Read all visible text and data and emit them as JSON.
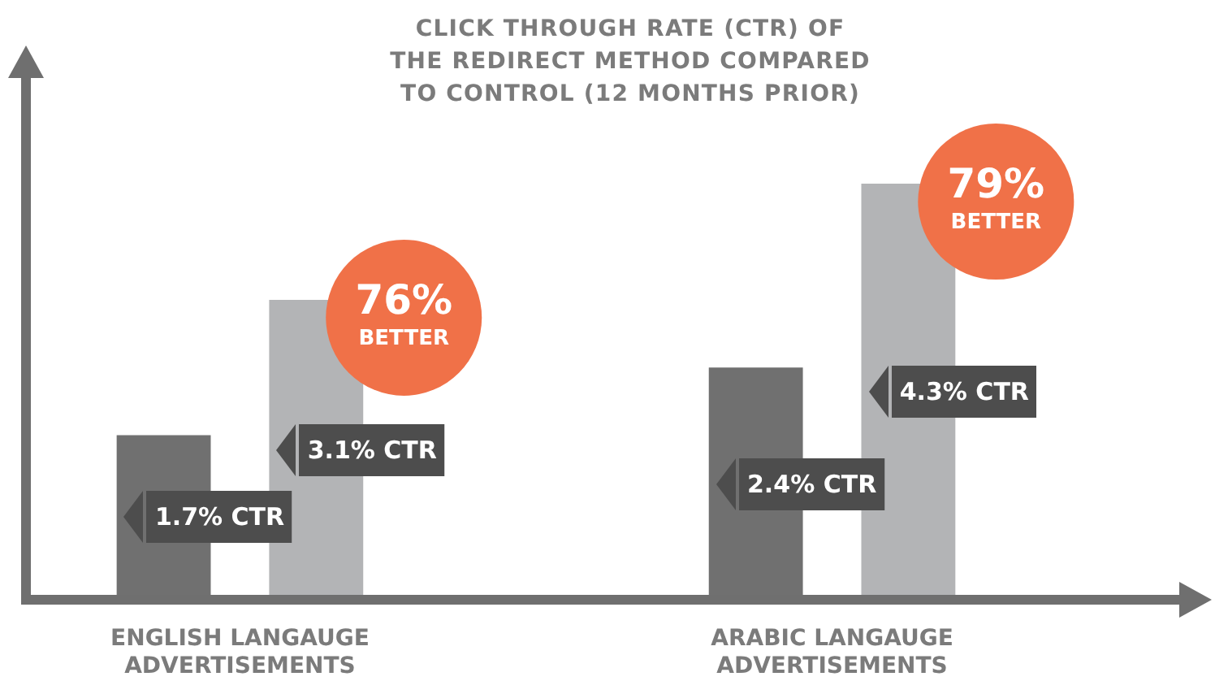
{
  "chart_data": {
    "type": "bar",
    "title": "CLICK THROUGH RATE (CTR) OF THE REDIRECT METHOD COMPARED TO CONTROL (12 MONTHS PRIOR)",
    "categories": [
      "ENGLISH LANGAUGE ADVERTISEMENTS",
      "ARABIC LANGAUGE ADVERTISEMENTS"
    ],
    "series": [
      {
        "color": "#707070",
        "values": [
          1.7,
          2.4
        ],
        "value_labels": [
          "1.7% CTR",
          "2.4% CTR"
        ]
      },
      {
        "color": "#b3b4b6",
        "values": [
          3.1,
          4.3
        ],
        "value_labels": [
          "3.1% CTR",
          "4.3% CTR"
        ]
      }
    ],
    "annotations": [
      "76% BETTER",
      "79% BETTER"
    ],
    "tick_labels": "x"
  }
}
